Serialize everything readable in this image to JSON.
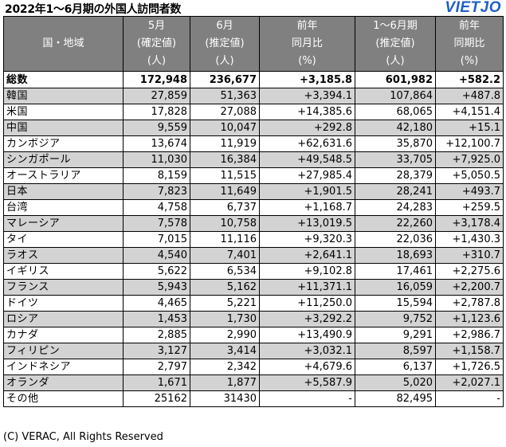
{
  "title": "2022年1〜6月期の外国人訪問者数",
  "logo": "VIETJO",
  "colors": {
    "header_gray": "#808080",
    "row_shade": "#d3d3d3",
    "logo_blue": "#1f5fc7"
  },
  "headers": [
    {
      "lines": [
        "国・地域"
      ]
    },
    {
      "lines": [
        "5月",
        "(確定値)",
        "(人)"
      ]
    },
    {
      "lines": [
        "6月",
        "(推定値)",
        "(人)"
      ]
    },
    {
      "lines": [
        "前年",
        "同月比",
        "(%)"
      ]
    },
    {
      "lines": [
        "1〜6月期",
        "(推定値)",
        "(人)"
      ]
    },
    {
      "lines": [
        "前年",
        "同期比",
        "(%)"
      ]
    }
  ],
  "total": [
    "総数",
    "172,948",
    "236,677",
    "+3,185.8",
    "601,982",
    "+582.2"
  ],
  "rows": [
    [
      "韓国",
      "27,859",
      "51,363",
      "+3,394.1",
      "107,864",
      "+487.8"
    ],
    [
      "米国",
      "17,828",
      "27,088",
      "+14,385.6",
      "68,065",
      "+4,151.4"
    ],
    [
      "中国",
      "9,559",
      "10,047",
      "+292.8",
      "42,180",
      "+15.1"
    ],
    [
      "カンボジア",
      "13,674",
      "11,919",
      "+62,631.6",
      "35,870",
      "+12,100.7"
    ],
    [
      "シンガポール",
      "11,030",
      "16,384",
      "+49,548.5",
      "33,705",
      "+7,925.0"
    ],
    [
      "オーストラリア",
      "8,159",
      "11,515",
      "+27,985.4",
      "28,379",
      "+5,050.5"
    ],
    [
      "日本",
      "7,823",
      "11,649",
      "+1,901.5",
      "28,241",
      "+493.7"
    ],
    [
      "台湾",
      "4,758",
      "6,737",
      "+1,168.7",
      "24,283",
      "+259.5"
    ],
    [
      "マレーシア",
      "7,578",
      "10,758",
      "+13,019.5",
      "22,260",
      "+3,178.4"
    ],
    [
      "タイ",
      "7,015",
      "11,116",
      "+9,320.3",
      "22,036",
      "+1,430.3"
    ],
    [
      "ラオス",
      "4,540",
      "7,401",
      "+2,641.1",
      "18,693",
      "+310.7"
    ],
    [
      "イギリス",
      "5,622",
      "6,534",
      "+9,102.8",
      "17,461",
      "+2,275.6"
    ],
    [
      "フランス",
      "5,943",
      "5,162",
      "+11,371.1",
      "16,059",
      "+2,200.7"
    ],
    [
      "ドイツ",
      "4,465",
      "5,221",
      "+11,250.0",
      "15,594",
      "+2,787.8"
    ],
    [
      "ロシア",
      "1,453",
      "1,730",
      "+3,292.2",
      "9,752",
      "+1,123.6"
    ],
    [
      "カナダ",
      "2,885",
      "2,990",
      "+13,490.9",
      "9,291",
      "+2,986.7"
    ],
    [
      "フィリピン",
      "3,127",
      "3,414",
      "+3,032.1",
      "8,597",
      "+1,158.7"
    ],
    [
      "インドネシア",
      "2,797",
      "2,342",
      "+4,679.6",
      "6,137",
      "+1,726.5"
    ],
    [
      "オランダ",
      "1,671",
      "1,877",
      "+5,587.9",
      "5,020",
      "+2,027.1"
    ],
    [
      "その他",
      "25162",
      "31430",
      "-",
      "82,495",
      "-"
    ]
  ],
  "footer": "(C) VERAC, All Rights Reserved"
}
